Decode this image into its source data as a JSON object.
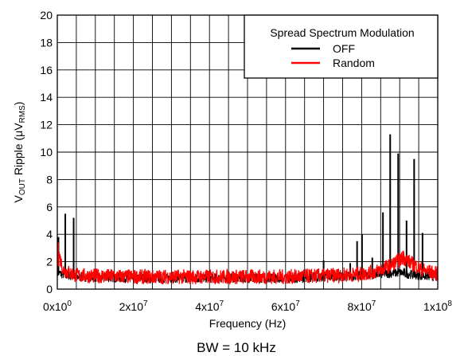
{
  "chart_data": {
    "type": "line",
    "xlabel": "Frequency (Hz)",
    "ylabel": {
      "main": "V",
      "sub1": "OUT",
      "mid": " Ripple (μV",
      "sub2": "RMS",
      "end": ")"
    },
    "footnote": "BW = 10 kHz",
    "xlim": [
      0,
      100000000
    ],
    "ylim": [
      0,
      20
    ],
    "grid": true,
    "x_ticks": [
      {
        "value": 0,
        "mant": "0x10",
        "exp": "0"
      },
      {
        "value": 20000000,
        "mant": "2x10",
        "exp": "7"
      },
      {
        "value": 40000000,
        "mant": "4x10",
        "exp": "7"
      },
      {
        "value": 60000000,
        "mant": "6x10",
        "exp": "7"
      },
      {
        "value": 80000000,
        "mant": "8x10",
        "exp": "7"
      },
      {
        "value": 100000000,
        "mant": "1x10",
        "exp": "8"
      }
    ],
    "y_ticks": [
      0,
      2,
      4,
      6,
      8,
      10,
      12,
      14,
      16,
      18,
      20
    ],
    "legend": {
      "title": "Spread Spectrum Modulation",
      "placement": "top-right"
    },
    "series": [
      {
        "name": "OFF",
        "color": "#000000",
        "baseline": [
          [
            0,
            1.2
          ],
          [
            1000000,
            1.1
          ],
          [
            5000000,
            0.9
          ],
          [
            20000000,
            0.8
          ],
          [
            40000000,
            0.8
          ],
          [
            60000000,
            0.8
          ],
          [
            72000000,
            0.9
          ],
          [
            80000000,
            1.0
          ],
          [
            85000000,
            1.1
          ],
          [
            90000000,
            1.2
          ],
          [
            95000000,
            1.0
          ],
          [
            100000000,
            0.9
          ]
        ],
        "peaks": [
          {
            "x": 300000,
            "y": 3.8
          },
          {
            "x": 2100000,
            "y": 5.5
          },
          {
            "x": 4300000,
            "y": 5.2
          },
          {
            "x": 70000000,
            "y": 2.1
          },
          {
            "x": 77000000,
            "y": 1.9
          },
          {
            "x": 78800000,
            "y": 3.5
          },
          {
            "x": 80100000,
            "y": 4.0
          },
          {
            "x": 82800000,
            "y": 2.3
          },
          {
            "x": 85600000,
            "y": 5.6
          },
          {
            "x": 87500000,
            "y": 11.3
          },
          {
            "x": 89600000,
            "y": 9.9
          },
          {
            "x": 91800000,
            "y": 5.0
          },
          {
            "x": 93800000,
            "y": 9.5
          },
          {
            "x": 96000000,
            "y": 4.1
          }
        ]
      },
      {
        "name": "Random",
        "color": "#ff0000",
        "baseline": [
          [
            0,
            1.8
          ],
          [
            500000,
            2.5
          ],
          [
            1500000,
            1.4
          ],
          [
            5000000,
            1.0
          ],
          [
            20000000,
            0.9
          ],
          [
            40000000,
            0.9
          ],
          [
            60000000,
            0.9
          ],
          [
            72000000,
            1.0
          ],
          [
            80000000,
            1.1
          ],
          [
            84000000,
            1.3
          ],
          [
            88000000,
            1.8
          ],
          [
            91000000,
            2.3
          ],
          [
            93000000,
            1.9
          ],
          [
            96000000,
            1.4
          ],
          [
            100000000,
            1.1
          ]
        ],
        "peaks": [
          {
            "x": 200000,
            "y": 3.4
          },
          {
            "x": 90900000,
            "y": 2.8
          }
        ]
      }
    ]
  }
}
